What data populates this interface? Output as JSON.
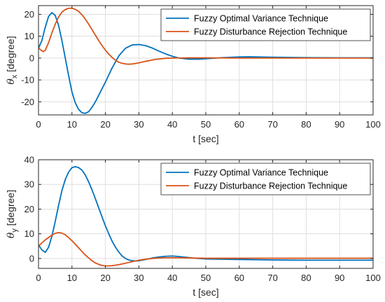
{
  "colors": {
    "series1": "#0072BD",
    "series2": "#D95319",
    "grid": "#dedede",
    "axis": "#262626"
  },
  "chart_data": [
    {
      "type": "line",
      "xlabel": "t [sec]",
      "ylabel": "θ",
      "ylabel_sub": "x",
      "ylabel_unit": " [degree]",
      "xlim": [
        0,
        100
      ],
      "ylim": [
        -26,
        24
      ],
      "xticks": [
        "0",
        "10",
        "20",
        "30",
        "40",
        "50",
        "60",
        "70",
        "80",
        "90",
        "100"
      ],
      "yticks": [
        "-20",
        "-10",
        "0",
        "10",
        "20"
      ],
      "grid": true,
      "legend_position": "top-right",
      "series": [
        {
          "name": "Fuzzy Optimal Variance Technique",
          "x": [
            0,
            1,
            2,
            3,
            4,
            5,
            6,
            7,
            8,
            9,
            10,
            11,
            12,
            13,
            14,
            15,
            16,
            17,
            18,
            20,
            22,
            24,
            26,
            28,
            30,
            32,
            34,
            36,
            38,
            40,
            42,
            45,
            48,
            50,
            55,
            60,
            63,
            70,
            80,
            90,
            100
          ],
          "y": [
            4.5,
            8,
            14,
            19,
            20.8,
            19.5,
            15,
            8,
            0,
            -8,
            -15.5,
            -20.5,
            -23.5,
            -25,
            -25.3,
            -24.5,
            -22.5,
            -20,
            -17,
            -11,
            -4.5,
            1,
            4.5,
            6,
            6.2,
            5.7,
            4.6,
            3.2,
            1.9,
            0.8,
            0,
            -0.5,
            -0.5,
            -0.3,
            0.2,
            0.5,
            0.6,
            0.4,
            0.2,
            0.1,
            0.1
          ]
        },
        {
          "name": "Fuzzy Disturbance Rejection Technique",
          "x": [
            0,
            0.5,
            1,
            1.5,
            2,
            3,
            4,
            5,
            6,
            7,
            8,
            9,
            10,
            11,
            12,
            13,
            14,
            15,
            16,
            17,
            18,
            19,
            20,
            21,
            22,
            23,
            24,
            25,
            26,
            27,
            28,
            30,
            32,
            35,
            38,
            40,
            45,
            50,
            60,
            70,
            80,
            90,
            100
          ],
          "y": [
            4.5,
            4,
            3.3,
            3,
            3.5,
            7,
            11.5,
            15.5,
            18.8,
            21,
            22.2,
            22.8,
            22.8,
            22.3,
            21.3,
            19.8,
            17.8,
            15.5,
            13,
            10.5,
            8,
            5.7,
            3.6,
            1.8,
            0.3,
            -1,
            -1.9,
            -2.4,
            -2.7,
            -2.8,
            -2.7,
            -2.2,
            -1.5,
            -0.6,
            -0.1,
            0,
            0.1,
            0.1,
            0,
            0,
            0,
            0,
            0
          ]
        }
      ]
    },
    {
      "type": "line",
      "xlabel": "t [sec]",
      "ylabel": "θ",
      "ylabel_sub": "y",
      "ylabel_unit": " [degree]",
      "xlim": [
        0,
        100
      ],
      "ylim": [
        -4,
        40
      ],
      "xticks": [
        "0",
        "10",
        "20",
        "30",
        "40",
        "50",
        "60",
        "70",
        "80",
        "90",
        "100"
      ],
      "yticks": [
        "0",
        "10",
        "20",
        "30",
        "40"
      ],
      "grid": true,
      "legend_position": "top-right",
      "series": [
        {
          "name": "Fuzzy Optimal Variance Technique",
          "x": [
            0,
            1,
            2,
            3,
            4,
            5,
            6,
            7,
            8,
            9,
            10,
            11,
            12,
            13,
            14,
            15,
            16,
            17,
            18,
            19,
            20,
            21,
            22,
            23,
            24,
            25,
            26,
            27,
            28,
            29,
            30,
            32,
            34,
            36,
            38,
            40,
            42,
            44,
            46,
            50,
            60,
            70,
            80,
            90,
            100
          ],
          "y": [
            5.5,
            3.5,
            2.5,
            4.5,
            9,
            15,
            21.5,
            27.5,
            32,
            35,
            36.8,
            37.2,
            36.8,
            35.8,
            33.8,
            31,
            27.8,
            24.2,
            20.5,
            16.8,
            13.2,
            10,
            7,
            4.6,
            2.6,
            1,
            0,
            -0.6,
            -0.9,
            -1,
            -0.9,
            -0.4,
            0.2,
            0.6,
            0.9,
            1,
            0.8,
            0.5,
            0.2,
            -0.2,
            -0.4,
            -0.6,
            -0.7,
            -0.7,
            -0.7
          ]
        },
        {
          "name": "Fuzzy Disturbance Rejection Technique",
          "x": [
            0,
            1,
            2,
            3,
            4,
            5,
            6,
            7,
            8,
            9,
            10,
            11,
            12,
            13,
            14,
            15,
            16,
            17,
            18,
            19,
            20,
            21,
            22,
            24,
            26,
            28,
            30,
            32,
            34,
            36,
            38,
            40,
            42,
            45,
            50,
            60,
            70,
            80,
            90,
            100
          ],
          "y": [
            5,
            6.3,
            7.5,
            8.5,
            9.5,
            10.2,
            10.5,
            10.3,
            9.6,
            8.5,
            7.2,
            5.8,
            4.3,
            2.8,
            1.4,
            0.2,
            -0.9,
            -1.8,
            -2.4,
            -2.8,
            -3,
            -3,
            -2.9,
            -2.5,
            -1.9,
            -1.3,
            -0.7,
            -0.3,
            0,
            0.2,
            0.3,
            0.3,
            0.3,
            0.2,
            0.1,
            0.1,
            0.1,
            0.1,
            0.1,
            0.1
          ]
        }
      ]
    }
  ]
}
